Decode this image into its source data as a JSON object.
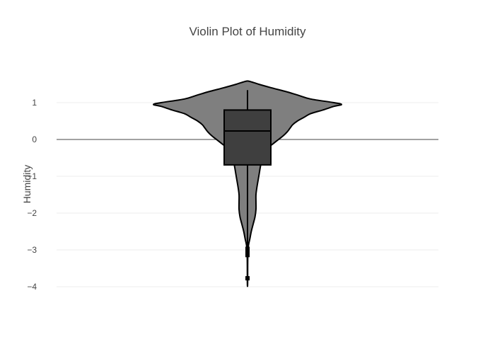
{
  "chart_data": {
    "type": "violin",
    "title": "Violin Plot of Humidity",
    "xlabel": "",
    "ylabel": "Humidity",
    "ylim": [
      -4.45,
      2.4
    ],
    "yticks": [
      1,
      0,
      -1,
      -2,
      -3,
      -4
    ],
    "ytick_labels": [
      "1",
      "0",
      "−1",
      "−2",
      "−3",
      "−4"
    ],
    "grid": true,
    "legend": "none",
    "colors": {
      "violin_fill": "#7f7f7f",
      "box_fill": "#3f3f3f",
      "outline": "#000000",
      "gridline": "#eeeeee",
      "zeroline": "#444444"
    },
    "series": [
      {
        "values_summary": {
          "q1": -0.69,
          "median": 0.23,
          "q3": 0.8,
          "whisker_low": -2.95,
          "whisker_high": 1.34,
          "max": 1.58,
          "min_tail": -3.97,
          "outliers": [
            -2.97,
            -3.02,
            -3.06,
            -3.1,
            -3.14,
            -3.77
          ]
        },
        "density": [
          [
            1.58,
            0.02
          ],
          [
            1.5,
            0.12
          ],
          [
            1.4,
            0.26
          ],
          [
            1.3,
            0.41
          ],
          [
            1.2,
            0.54
          ],
          [
            1.1,
            0.67
          ],
          [
            1.0,
            0.92
          ],
          [
            0.95,
            1.0
          ],
          [
            0.9,
            0.92
          ],
          [
            0.8,
            0.8
          ],
          [
            0.7,
            0.67
          ],
          [
            0.6,
            0.6
          ],
          [
            0.5,
            0.53
          ],
          [
            0.4,
            0.48
          ],
          [
            0.3,
            0.45
          ],
          [
            0.2,
            0.42
          ],
          [
            0.1,
            0.38
          ],
          [
            0.0,
            0.33
          ],
          [
            -0.1,
            0.28
          ],
          [
            -0.2,
            0.23
          ],
          [
            -0.3,
            0.2
          ],
          [
            -0.5,
            0.16
          ],
          [
            -0.7,
            0.14
          ],
          [
            -1.0,
            0.12
          ],
          [
            -1.3,
            0.1
          ],
          [
            -1.5,
            0.09
          ],
          [
            -1.7,
            0.09
          ],
          [
            -1.9,
            0.09
          ],
          [
            -2.1,
            0.08
          ],
          [
            -2.3,
            0.06
          ],
          [
            -2.5,
            0.04
          ],
          [
            -2.7,
            0.025
          ],
          [
            -2.85,
            0.012
          ],
          [
            -3.0,
            0.006
          ],
          [
            -3.2,
            0.003
          ],
          [
            -3.5,
            0.002
          ],
          [
            -3.8,
            0.002
          ],
          [
            -3.97,
            0.001
          ]
        ]
      }
    ]
  }
}
